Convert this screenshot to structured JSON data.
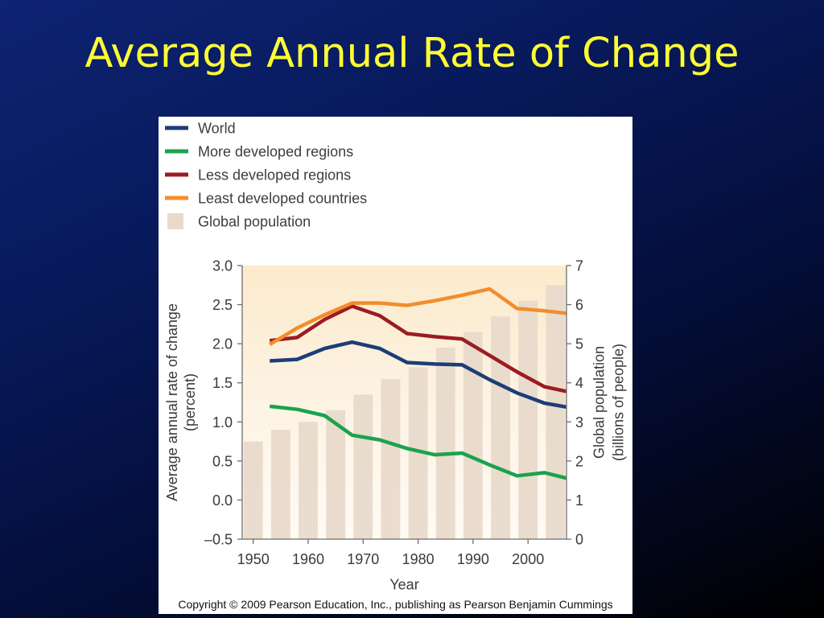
{
  "slide": {
    "title": "Average Annual Rate of Change",
    "title_color": "#ffff33",
    "copyright": "Copyright © 2009 Pearson Education, Inc., publishing as Pearson Benjamin Cummings"
  },
  "chart_data": {
    "type": "line",
    "x_label": "Year",
    "y_label": "Average annual rate of change",
    "y_label_unit": "(percent)",
    "y2_label": "Global population",
    "y2_label_unit": "(billions of people)",
    "xlim": [
      1948,
      2007
    ],
    "ylim": [
      -0.5,
      3.0
    ],
    "y2lim": [
      0,
      7
    ],
    "grid": false,
    "legend_position": "top-left",
    "x_ticks": [
      {
        "value": 1950,
        "label": "1950"
      },
      {
        "value": 1960,
        "label": "1960"
      },
      {
        "value": 1970,
        "label": "1970"
      },
      {
        "value": 1980,
        "label": "1980"
      },
      {
        "value": 1990,
        "label": "1990"
      },
      {
        "value": 2000,
        "label": "2000"
      }
    ],
    "y_ticks": [
      {
        "value": 3.0,
        "label": "3.0"
      },
      {
        "value": 2.5,
        "label": "2.5"
      },
      {
        "value": 2.0,
        "label": "2.0"
      },
      {
        "value": 1.5,
        "label": "1.5"
      },
      {
        "value": 1.0,
        "label": "1.0"
      },
      {
        "value": 0.5,
        "label": "0.5"
      },
      {
        "value": 0.0,
        "label": "0.0"
      },
      {
        "value": -0.5,
        "label": "–0.5"
      }
    ],
    "y2_ticks": [
      {
        "value": 7,
        "label": "7"
      },
      {
        "value": 6,
        "label": "6"
      },
      {
        "value": 5,
        "label": "5"
      },
      {
        "value": 4,
        "label": "4"
      },
      {
        "value": 3,
        "label": "3"
      },
      {
        "value": 2,
        "label": "2"
      },
      {
        "value": 1,
        "label": "1"
      },
      {
        "value": 0,
        "label": "0"
      }
    ],
    "x": [
      1953,
      1958,
      1963,
      1968,
      1973,
      1978,
      1983,
      1988,
      1993,
      1998,
      2003,
      2007
    ],
    "series": [
      {
        "name": "World",
        "color": "#1c3d78",
        "values": [
          1.78,
          1.8,
          1.94,
          2.02,
          1.94,
          1.76,
          1.74,
          1.73,
          1.54,
          1.37,
          1.24,
          1.19
        ]
      },
      {
        "name": "More developed regions",
        "color": "#1ba24e",
        "values": [
          1.2,
          1.16,
          1.08,
          0.83,
          0.77,
          0.66,
          0.58,
          0.6,
          0.45,
          0.31,
          0.35,
          0.28
        ]
      },
      {
        "name": "Less developed regions",
        "color": "#9c1b22",
        "values": [
          2.04,
          2.08,
          2.31,
          2.48,
          2.36,
          2.13,
          2.09,
          2.06,
          1.85,
          1.64,
          1.45,
          1.39
        ]
      },
      {
        "name": "Least developed countries",
        "color": "#f28d2c",
        "values": [
          1.99,
          2.2,
          2.37,
          2.52,
          2.52,
          2.49,
          2.55,
          2.62,
          2.7,
          2.45,
          2.42,
          2.39
        ]
      }
    ],
    "y2_bars": {
      "name": "Global population",
      "color": "#e9dacb",
      "x": [
        1950,
        1955,
        1960,
        1965,
        1970,
        1975,
        1980,
        1985,
        1990,
        1995,
        2000,
        2005
      ],
      "values": [
        2.5,
        2.8,
        3.0,
        3.3,
        3.7,
        4.1,
        4.4,
        4.9,
        5.3,
        5.7,
        6.1,
        6.5
      ]
    }
  }
}
